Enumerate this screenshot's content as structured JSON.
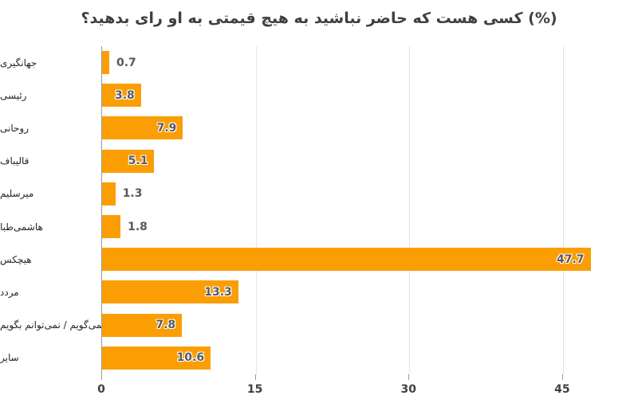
{
  "chart_data": {
    "type": "bar",
    "orientation": "horizontal",
    "title": "(%) کسی هست که حاضر نباشید به هیچ قیمتی به او رای بدهید؟",
    "categories": [
      "جهانگیری",
      "رئیسی",
      "روحانی",
      "قالیباف",
      "میرسلیم",
      "هاشمی‌طبا",
      "هیچکس",
      "مردد",
      "نمی‌گویم / نمی‌توانم بگویم",
      "سایر"
    ],
    "values": [
      0.7,
      3.8,
      7.9,
      5.1,
      1.3,
      1.8,
      47.7,
      13.3,
      7.8,
      10.6
    ],
    "value_labels": [
      "0.7",
      "3.8",
      "7.9",
      "5.1",
      "1.3",
      "1.8",
      "47.7",
      "13.3",
      "7.8",
      "10.6"
    ],
    "x_ticks": [
      0,
      15,
      30,
      45
    ],
    "x_tick_labels": [
      "0",
      "15",
      "30",
      "45"
    ],
    "xlim": [
      0,
      48.75
    ],
    "grid": "vertical-only",
    "legend": "none",
    "xlabel": "",
    "ylabel": ""
  },
  "colors": {
    "bar": "#FB9E04",
    "title": "#3F3F3F",
    "value_label": "#595959",
    "category_label": "#262626",
    "tick_label": "#404040",
    "axis_line": "#999999",
    "gridline": "#E4E4E4",
    "background": "#FFFFFF"
  }
}
